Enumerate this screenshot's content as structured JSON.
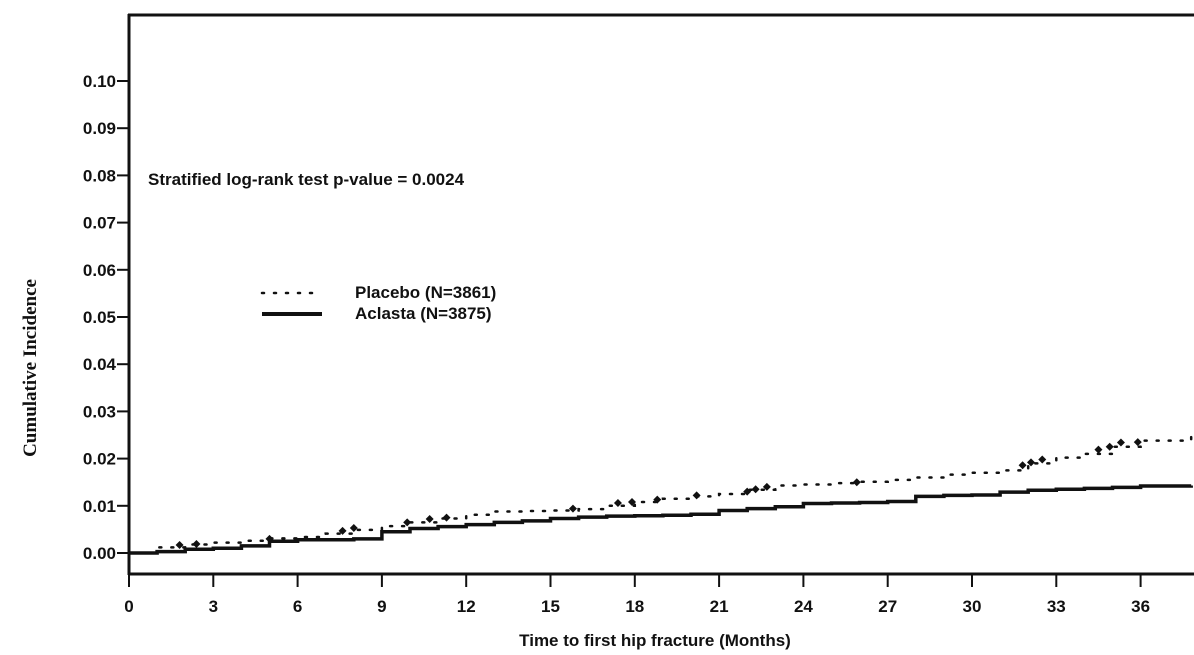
{
  "chart_data": {
    "type": "line",
    "title": "",
    "xlabel": "Time to first hip fracture (Months)",
    "ylabel": "Cumulative Incidence",
    "xlim": [
      0,
      37.8
    ],
    "ylim": [
      0,
      0.11
    ],
    "x_ticks": [
      0,
      3,
      6,
      9,
      12,
      15,
      18,
      21,
      24,
      27,
      30,
      33,
      36
    ],
    "x_tick_labels": [
      "0",
      "3",
      "6",
      "9",
      "12",
      "15",
      "18",
      "21",
      "24",
      "27",
      "30",
      "33",
      "36"
    ],
    "y_ticks": [
      0.0,
      0.01,
      0.02,
      0.03,
      0.04,
      0.05,
      0.06,
      0.07,
      0.08,
      0.09,
      0.1
    ],
    "y_tick_labels": [
      "0.00",
      "0.01",
      "0.02",
      "0.03",
      "0.04",
      "0.05",
      "0.06",
      "0.07",
      "0.08",
      "0.09",
      "0.10"
    ],
    "annotation": "Stratified log-rank test p-value = 0.0024",
    "legend_placement": "center-left",
    "grid": false,
    "series": [
      {
        "name": "Placebo (N=3861)",
        "style": "dotted",
        "color": "#111111",
        "x": [
          0,
          1,
          2,
          3,
          4,
          5,
          6,
          7,
          8,
          9,
          10,
          11,
          12,
          13,
          14,
          15,
          16,
          17,
          18,
          19,
          20,
          21,
          22,
          23,
          24,
          25,
          26,
          27,
          28,
          29,
          30,
          31,
          32,
          33,
          34,
          35,
          36,
          37.8
        ],
        "y": [
          0.0,
          0.0012,
          0.0018,
          0.0022,
          0.0026,
          0.0031,
          0.0034,
          0.0041,
          0.0049,
          0.0057,
          0.0065,
          0.0073,
          0.0081,
          0.0088,
          0.0089,
          0.009,
          0.0093,
          0.01,
          0.0108,
          0.0115,
          0.012,
          0.0125,
          0.0134,
          0.0143,
          0.0145,
          0.0148,
          0.0151,
          0.0155,
          0.016,
          0.0166,
          0.017,
          0.0175,
          0.019,
          0.0202,
          0.021,
          0.0225,
          0.0238,
          0.0255
        ]
      },
      {
        "name": "Aclasta (N=3875)",
        "style": "solid",
        "color": "#111111",
        "x": [
          0,
          1,
          2,
          3,
          4,
          5,
          6,
          7,
          8,
          9,
          10,
          11,
          12,
          13,
          14,
          15,
          16,
          17,
          18,
          19,
          20,
          21,
          22,
          23,
          24,
          25,
          26,
          27,
          28,
          29,
          30,
          31,
          32,
          33,
          34,
          35,
          36,
          37.8
        ],
        "y": [
          0.0,
          0.0003,
          0.0008,
          0.001,
          0.0015,
          0.0025,
          0.0028,
          0.0028,
          0.003,
          0.0045,
          0.0052,
          0.0056,
          0.006,
          0.0065,
          0.0068,
          0.0073,
          0.0076,
          0.0078,
          0.0079,
          0.008,
          0.0082,
          0.009,
          0.0094,
          0.0098,
          0.0105,
          0.0106,
          0.0107,
          0.0109,
          0.012,
          0.0122,
          0.0123,
          0.0129,
          0.0133,
          0.0135,
          0.0137,
          0.0139,
          0.0142,
          0.0143
        ]
      }
    ],
    "markers": {
      "series": "Placebo (N=3861)",
      "x": [
        1.8,
        2.4,
        5.0,
        7.6,
        8.0,
        9.9,
        10.7,
        11.3,
        15.8,
        17.4,
        17.9,
        18.8,
        20.2,
        22.0,
        22.3,
        22.7,
        25.9,
        31.8,
        32.1,
        32.5,
        34.5,
        34.9,
        35.3,
        35.9
      ],
      "y": [
        0.0017,
        0.0019,
        0.003,
        0.0047,
        0.0053,
        0.0065,
        0.0072,
        0.0075,
        0.0094,
        0.0106,
        0.0108,
        0.0113,
        0.0122,
        0.013,
        0.0135,
        0.014,
        0.015,
        0.0186,
        0.0192,
        0.0198,
        0.0219,
        0.0225,
        0.0234,
        0.0235
      ]
    }
  }
}
